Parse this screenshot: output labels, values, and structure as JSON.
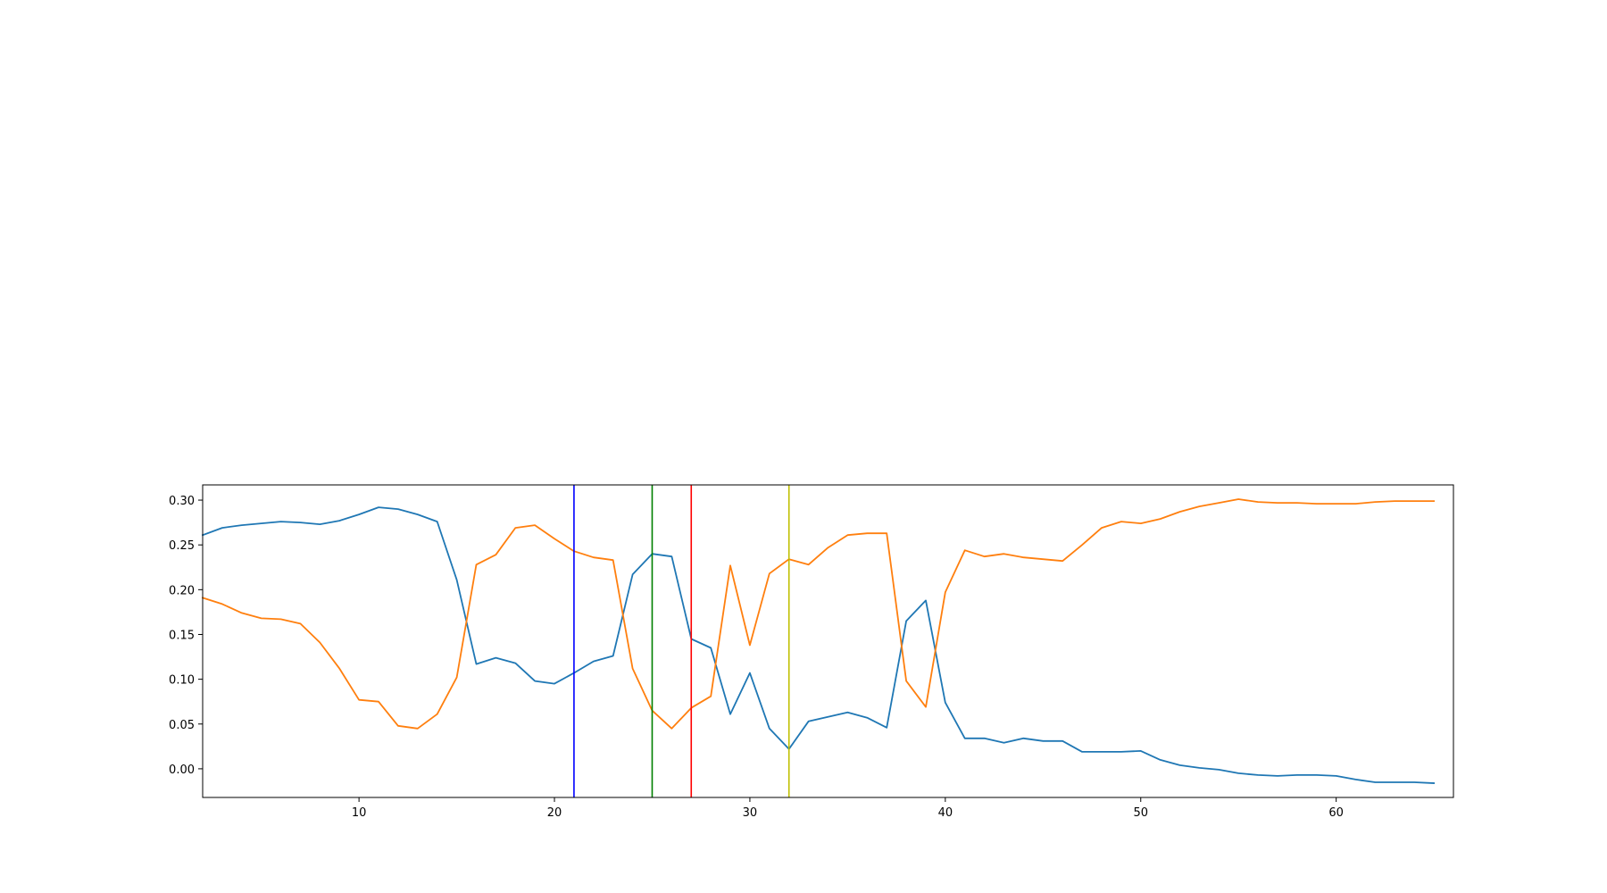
{
  "chart_data": {
    "type": "line",
    "title": "",
    "xlabel": "",
    "ylabel": "",
    "xlim": [
      2,
      66
    ],
    "ylim": [
      -0.032,
      0.317
    ],
    "grid": false,
    "x_ticks": [
      10,
      20,
      30,
      40,
      50,
      60
    ],
    "x_tick_labels": [
      "10",
      "20",
      "30",
      "40",
      "50",
      "60"
    ],
    "y_ticks": [
      0.0,
      0.05,
      0.1,
      0.15,
      0.2,
      0.25,
      0.3
    ],
    "y_tick_labels": [
      "0.00",
      "0.05",
      "0.10",
      "0.15",
      "0.20",
      "0.25",
      "0.30"
    ],
    "x": [
      2,
      3,
      4,
      5,
      6,
      7,
      8,
      9,
      10,
      11,
      12,
      13,
      14,
      15,
      16,
      17,
      18,
      19,
      20,
      21,
      22,
      23,
      24,
      25,
      26,
      27,
      28,
      29,
      30,
      31,
      32,
      33,
      34,
      35,
      36,
      37,
      38,
      39,
      40,
      41,
      42,
      43,
      44,
      45,
      46,
      47,
      48,
      49,
      50,
      51,
      52,
      53,
      54,
      55,
      56,
      57,
      58,
      59,
      60,
      61,
      62,
      63,
      64,
      65
    ],
    "series": [
      {
        "color": "#1f77b4",
        "values": [
          0.261,
          0.269,
          0.272,
          0.274,
          0.276,
          0.275,
          0.273,
          0.277,
          0.284,
          0.292,
          0.29,
          0.284,
          0.276,
          0.211,
          0.117,
          0.124,
          0.118,
          0.098,
          0.095,
          0.107,
          0.12,
          0.126,
          0.217,
          0.24,
          0.237,
          0.145,
          0.135,
          0.061,
          0.107,
          0.045,
          0.022,
          0.053,
          0.058,
          0.063,
          0.057,
          0.046,
          0.165,
          0.188,
          0.074,
          0.034,
          0.034,
          0.029,
          0.034,
          0.031,
          0.031,
          0.019,
          0.019,
          0.019,
          0.02,
          0.01,
          0.004,
          0.001,
          -0.001,
          -0.005,
          -0.007,
          -0.008,
          -0.007,
          -0.007,
          -0.008,
          -0.012,
          -0.015,
          -0.015,
          -0.015,
          -0.016
        ]
      },
      {
        "color": "#ff7f0e",
        "values": [
          0.191,
          0.184,
          0.174,
          0.168,
          0.167,
          0.162,
          0.141,
          0.112,
          0.077,
          0.075,
          0.048,
          0.045,
          0.061,
          0.102,
          0.228,
          0.239,
          0.269,
          0.272,
          0.257,
          0.243,
          0.236,
          0.233,
          0.112,
          0.065,
          0.045,
          0.068,
          0.081,
          0.227,
          0.138,
          0.218,
          0.234,
          0.228,
          0.247,
          0.261,
          0.263,
          0.263,
          0.098,
          0.069,
          0.197,
          0.244,
          0.237,
          0.24,
          0.236,
          0.234,
          0.232,
          0.25,
          0.269,
          0.276,
          0.274,
          0.279,
          0.287,
          0.293,
          0.297,
          0.301,
          0.298,
          0.297,
          0.297,
          0.296,
          0.296,
          0.296,
          0.298,
          0.299,
          0.299,
          0.299
        ]
      }
    ],
    "vlines": [
      {
        "x": 21,
        "color": "#0000ff"
      },
      {
        "x": 25,
        "color": "#008000"
      },
      {
        "x": 27,
        "color": "#ff0000"
      },
      {
        "x": 32,
        "color": "#bfbf00"
      }
    ]
  }
}
